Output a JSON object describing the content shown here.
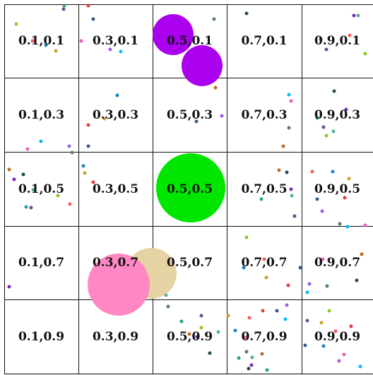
{
  "grid": {
    "rows": [
      [
        "0.1,0.1",
        "0.3,0.1",
        "0.5,0.1",
        "0.7,0.1",
        "0.9,0.1"
      ],
      [
        "0.1,0.3",
        "0.3,0.3",
        "0.5,0.3",
        "0.7,0.3",
        "0.9,0.3"
      ],
      [
        "0.1,0.5",
        "0.3,0.5",
        "0.5,0.5",
        "0.7,0.5",
        "0.9,0.5"
      ],
      [
        "0.1,0.7",
        "0.3,0.7",
        "0.5,0.7",
        "0.7,0.7",
        "0.9,0.7"
      ],
      [
        "0.1,0.9",
        "0.3,0.9",
        "0.5,0.9",
        "0.7,0.9",
        "0.9,0.9"
      ]
    ]
  },
  "colors": {
    "purple": "#aa00ee",
    "green": "#00e600",
    "pink": "#ff88c4",
    "tan": "#e6d3a3",
    "grid_line": "#111111"
  }
}
